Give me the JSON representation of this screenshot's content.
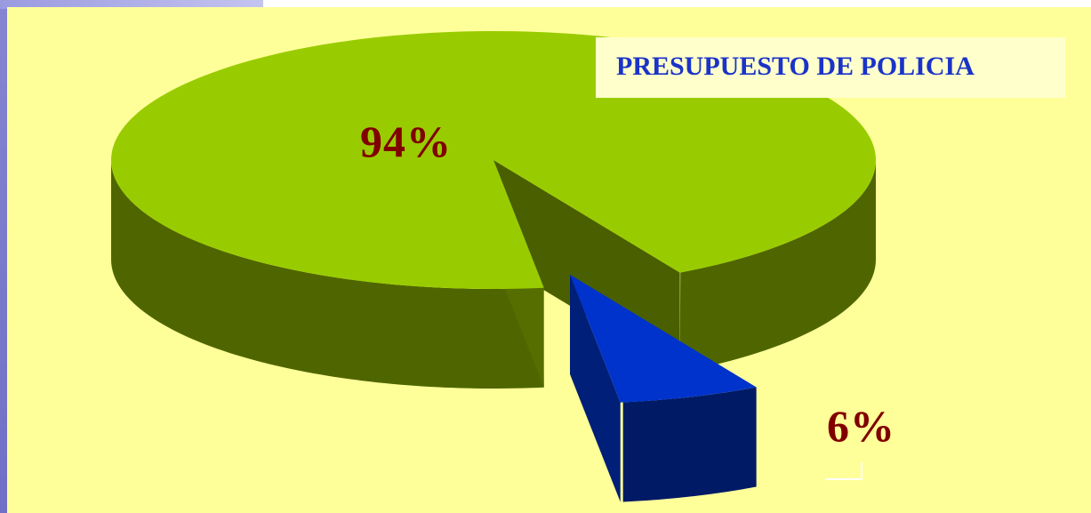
{
  "chart_data": {
    "type": "pie",
    "title": "PRESUPUESTO DE POLICIA",
    "categories": [
      "",
      ""
    ],
    "values": [
      94,
      6
    ],
    "labels": [
      "94%",
      "6%"
    ],
    "colors": [
      "#99cc00",
      "#0033cc"
    ],
    "side_colors": [
      "#4f6600",
      "#001a66"
    ],
    "style": "3d-exploded",
    "legend": "none"
  },
  "background": {
    "panel": "#ffff99",
    "frame": "#8c8cd8"
  }
}
